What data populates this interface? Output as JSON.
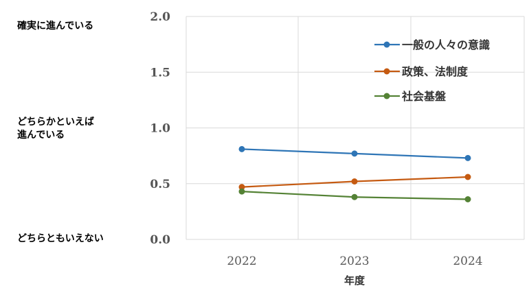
{
  "chart_data": {
    "type": "line",
    "x": [
      "2022",
      "2023",
      "2024"
    ],
    "xlabel": "年度",
    "ylim": [
      0,
      2.0
    ],
    "yticks": [
      "0.0",
      "0.5",
      "1.0",
      "1.5",
      "2.0"
    ],
    "ytick_values": [
      0,
      0.5,
      1.0,
      1.5,
      2.0
    ],
    "grid": true,
    "legend_position": "top-right",
    "category_labels": [
      {
        "value": 2.0,
        "text": "確実に進んでいる"
      },
      {
        "value": 1.0,
        "text": "どちらかといえば\n進んでいる"
      },
      {
        "value": 0.0,
        "text": "どちらともいえない"
      }
    ],
    "series": [
      {
        "name": "一般の人々の意識",
        "color": "#2E75B6",
        "values": [
          0.81,
          0.77,
          0.73
        ]
      },
      {
        "name": "政策、法制度",
        "color": "#C55A11",
        "values": [
          0.47,
          0.52,
          0.56
        ]
      },
      {
        "name": "社会基盤",
        "color": "#548235",
        "values": [
          0.43,
          0.38,
          0.36
        ]
      }
    ]
  }
}
